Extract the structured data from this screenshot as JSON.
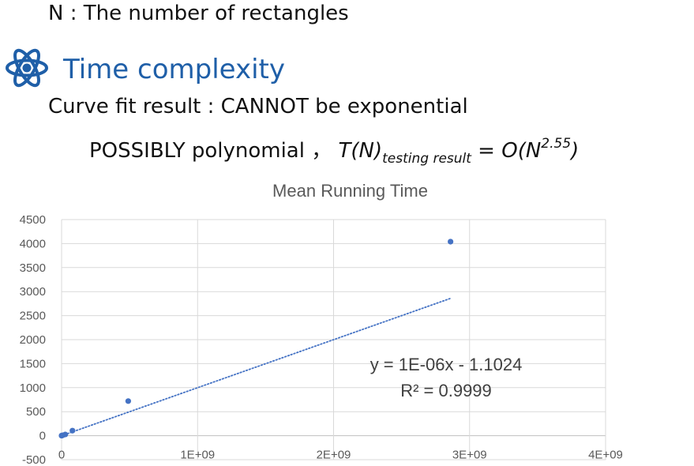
{
  "text": {
    "line1": "N : The number of rectangles",
    "heading": "Time complexity",
    "line3": "Curve fit result :  CANNOT be exponential",
    "line4_prefix": "POSSIBLY polynomial ， ",
    "line4_tn": "T(N)",
    "line4_sub": "testing result",
    "line4_eq": " = O(N",
    "line4_sup": "2.55",
    "line4_close": ")"
  },
  "icons": {
    "heading_icon": "atom-icon",
    "accent": "#1f5fa8"
  },
  "chart_data": {
    "type": "scatter",
    "title": "Mean Running Time",
    "xlabel": "",
    "ylabel": "",
    "xlim": [
      0,
      4000000000
    ],
    "ylim": [
      -500,
      4500
    ],
    "x_ticks": [
      0,
      1000000000,
      2000000000,
      3000000000,
      4000000000
    ],
    "x_tick_labels": [
      "0",
      "1E+09",
      "2E+09",
      "3E+09",
      "4E+09"
    ],
    "y_ticks": [
      -500,
      0,
      500,
      1000,
      1500,
      2000,
      2500,
      3000,
      3500,
      4000,
      4500
    ],
    "y_tick_labels": [
      "-500",
      "0",
      "500",
      "1000",
      "1500",
      "2000",
      "2500",
      "3000",
      "3500",
      "4000",
      "4500"
    ],
    "grid": true,
    "series": [
      {
        "x": [
          100000,
          1000000,
          8000000,
          27000000,
          80000000,
          490000000,
          2860000000
        ],
        "y": [
          1,
          2,
          8,
          25,
          105,
          720,
          4040
        ],
        "color": "#4472c4"
      }
    ],
    "trendline": {
      "type": "linear",
      "slope": 1e-06,
      "intercept": -1.1024,
      "color": "#4472c4",
      "style": "dotted",
      "equation": "y = 1E-06x - 1.1024",
      "r_squared": "R² = 0.9999"
    }
  }
}
